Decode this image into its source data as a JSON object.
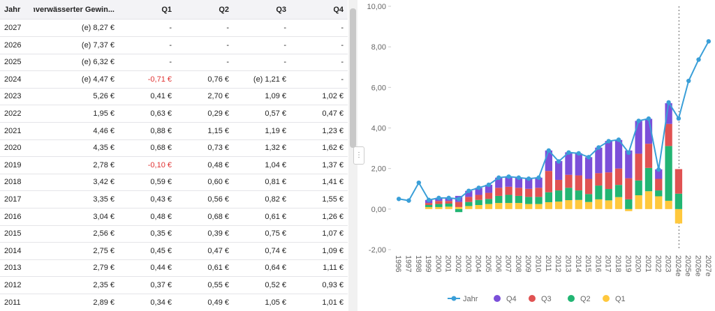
{
  "table": {
    "columns": [
      "Jahr",
      "unverwässerter Gewin...",
      "Q1",
      "Q2",
      "Q3",
      "Q4"
    ],
    "rows": [
      [
        "2027",
        "(e) 8,27 €",
        "-",
        "-",
        "-",
        "-"
      ],
      [
        "2026",
        "(e) 7,37 €",
        "-",
        "-",
        "-",
        "-"
      ],
      [
        "2025",
        "(e) 6,32 €",
        "-",
        "-",
        "-",
        "-"
      ],
      [
        "2024",
        "(e) 4,47 €",
        "-0,71 €",
        "0,76 €",
        "(e) 1,21 €",
        "-"
      ],
      [
        "2023",
        "5,26 €",
        "0,41 €",
        "2,70 €",
        "1,09 €",
        "1,02 €"
      ],
      [
        "2022",
        "1,95 €",
        "0,63 €",
        "0,29 €",
        "0,57 €",
        "0,47 €"
      ],
      [
        "2021",
        "4,46 €",
        "0,88 €",
        "1,15 €",
        "1,19 €",
        "1,23 €"
      ],
      [
        "2020",
        "4,35 €",
        "0,68 €",
        "0,73 €",
        "1,32 €",
        "1,62 €"
      ],
      [
        "2019",
        "2,78 €",
        "-0,10 €",
        "0,48 €",
        "1,04 €",
        "1,37 €"
      ],
      [
        "2018",
        "3,42 €",
        "0,59 €",
        "0,60 €",
        "0,81 €",
        "1,41 €"
      ],
      [
        "2017",
        "3,35 €",
        "0,43 €",
        "0,56 €",
        "0,82 €",
        "1,55 €"
      ],
      [
        "2016",
        "3,04 €",
        "0,48 €",
        "0,68 €",
        "0,61 €",
        "1,26 €"
      ],
      [
        "2015",
        "2,56 €",
        "0,35 €",
        "0,39 €",
        "0,75 €",
        "1,07 €"
      ],
      [
        "2014",
        "2,75 €",
        "0,45 €",
        "0,47 €",
        "0,74 €",
        "1,09 €"
      ],
      [
        "2013",
        "2,79 €",
        "0,44 €",
        "0,61 €",
        "0,64 €",
        "1,11 €"
      ],
      [
        "2012",
        "2,35 €",
        "0,37 €",
        "0,55 €",
        "0,52 €",
        "0,93 €"
      ],
      [
        "2011",
        "2,89 €",
        "0,34 €",
        "0,49 €",
        "1,05 €",
        "1,01 €"
      ]
    ]
  },
  "chart_data": {
    "type": "bar",
    "categories": [
      "1996",
      "1997",
      "1998",
      "1999",
      "2000",
      "2001",
      "2002",
      "2003",
      "2004",
      "2005",
      "2006",
      "2007",
      "2008",
      "2009",
      "2010",
      "2011",
      "2012",
      "2013",
      "2014",
      "2015",
      "2016",
      "2017",
      "2018",
      "2019",
      "2020",
      "2021",
      "2022",
      "2023",
      "2024e",
      "2025e",
      "2026e",
      "2027e"
    ],
    "ylim": [
      -2,
      10
    ],
    "yticks": [
      {
        "value": -2,
        "label": "-2,00"
      },
      {
        "value": 0,
        "label": "0,00"
      },
      {
        "value": 2,
        "label": "2,00"
      },
      {
        "value": 4,
        "label": "4,00"
      },
      {
        "value": 6,
        "label": "6,00"
      },
      {
        "value": 8,
        "label": "8,00"
      },
      {
        "value": 10,
        "label": "10,00"
      }
    ],
    "series": [
      {
        "name": "Jahr",
        "type": "line",
        "color": "#3a9fd8",
        "values": [
          0.5,
          0.42,
          1.3,
          0.45,
          0.55,
          0.55,
          0.5,
          0.9,
          1.05,
          1.2,
          1.55,
          1.6,
          1.55,
          1.5,
          1.55,
          2.89,
          2.35,
          2.79,
          2.75,
          2.56,
          3.04,
          3.35,
          3.42,
          2.78,
          4.35,
          4.46,
          1.95,
          5.26,
          4.47,
          6.32,
          7.37,
          8.27
        ]
      },
      {
        "name": "Q4",
        "color": "#7b4fd9",
        "values": [
          null,
          null,
          null,
          0.15,
          0.15,
          0.15,
          0.3,
          0.3,
          0.35,
          0.4,
          0.5,
          0.5,
          0.5,
          0.5,
          0.5,
          1.01,
          0.93,
          1.11,
          1.09,
          1.07,
          1.26,
          1.55,
          1.41,
          1.37,
          1.62,
          1.23,
          0.47,
          1.02,
          null,
          null,
          null,
          null
        ]
      },
      {
        "name": "Q3",
        "color": "#e05252",
        "values": [
          null,
          null,
          null,
          0.1,
          0.15,
          0.13,
          0.25,
          0.25,
          0.25,
          0.3,
          0.4,
          0.4,
          0.4,
          0.4,
          0.45,
          1.05,
          0.52,
          0.64,
          0.74,
          0.75,
          0.61,
          0.82,
          0.81,
          1.04,
          1.32,
          1.19,
          0.57,
          1.09,
          1.21,
          null,
          null,
          null
        ]
      },
      {
        "name": "Q2",
        "color": "#22b573",
        "values": [
          null,
          null,
          null,
          0.1,
          0.15,
          0.15,
          -0.15,
          0.2,
          0.25,
          0.25,
          0.35,
          0.4,
          0.35,
          0.35,
          0.35,
          0.49,
          0.55,
          0.61,
          0.47,
          0.39,
          0.68,
          0.56,
          0.6,
          0.48,
          0.73,
          1.15,
          0.29,
          2.7,
          0.76,
          null,
          null,
          null
        ]
      },
      {
        "name": "Q1",
        "color": "#ffc83d",
        "values": [
          null,
          null,
          null,
          0.1,
          0.1,
          0.12,
          0.1,
          0.15,
          0.2,
          0.25,
          0.3,
          0.3,
          0.3,
          0.25,
          0.25,
          0.34,
          0.37,
          0.44,
          0.45,
          0.35,
          0.48,
          0.43,
          0.59,
          -0.1,
          0.68,
          0.88,
          0.63,
          0.41,
          -0.71,
          null,
          null,
          null
        ]
      }
    ]
  }
}
